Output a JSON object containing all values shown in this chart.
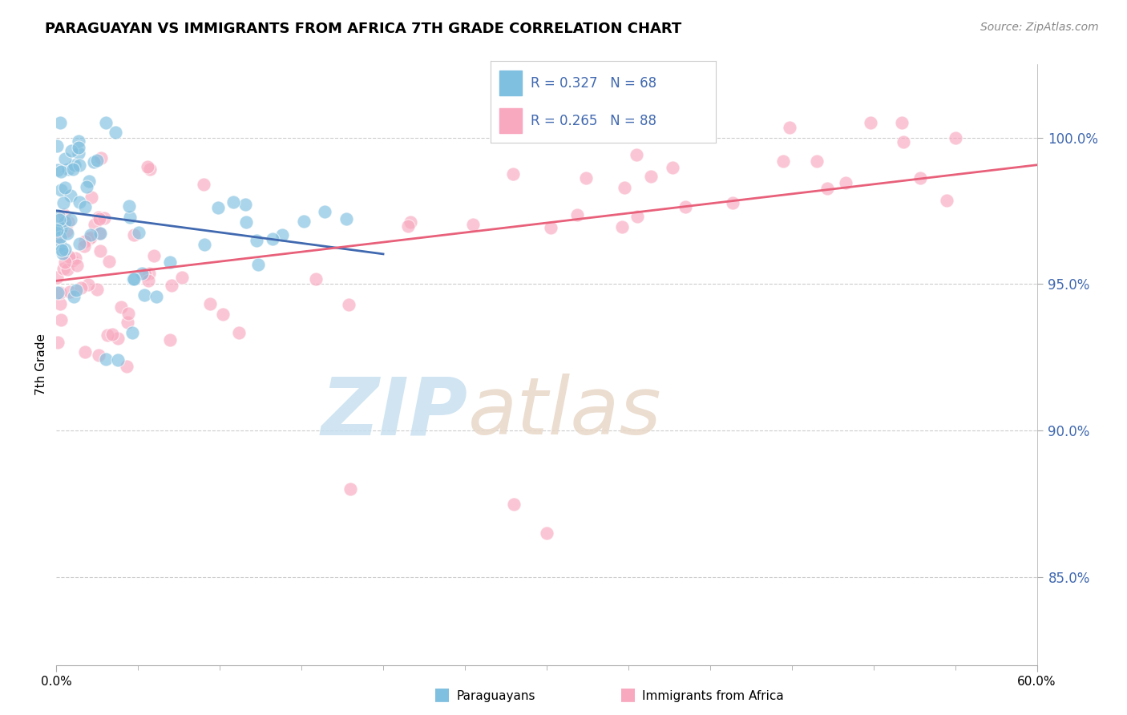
{
  "title": "PARAGUAYAN VS IMMIGRANTS FROM AFRICA 7TH GRADE CORRELATION CHART",
  "source": "Source: ZipAtlas.com",
  "ylabel": "7th Grade",
  "xmin": 0.0,
  "xmax": 60.0,
  "ymin": 82.0,
  "ymax": 102.5,
  "yticks": [
    85.0,
    90.0,
    95.0,
    100.0
  ],
  "ytick_labels": [
    "85.0%",
    "90.0%",
    "95.0%",
    "100.0%"
  ],
  "legend_r1": "R = 0.327",
  "legend_n1": "N = 68",
  "legend_r2": "R = 0.265",
  "legend_n2": "N = 88",
  "blue_color": "#7fbfdf",
  "pink_color": "#f8a8bf",
  "blue_line_color": "#4169b0",
  "pink_line_color": "#e8607a",
  "title_fontsize": 13,
  "source_fontsize": 10,
  "tick_label_color": "#4169b0",
  "watermark_zip_color": "#c8e0f0",
  "watermark_atlas_color": "#e8d8c8"
}
